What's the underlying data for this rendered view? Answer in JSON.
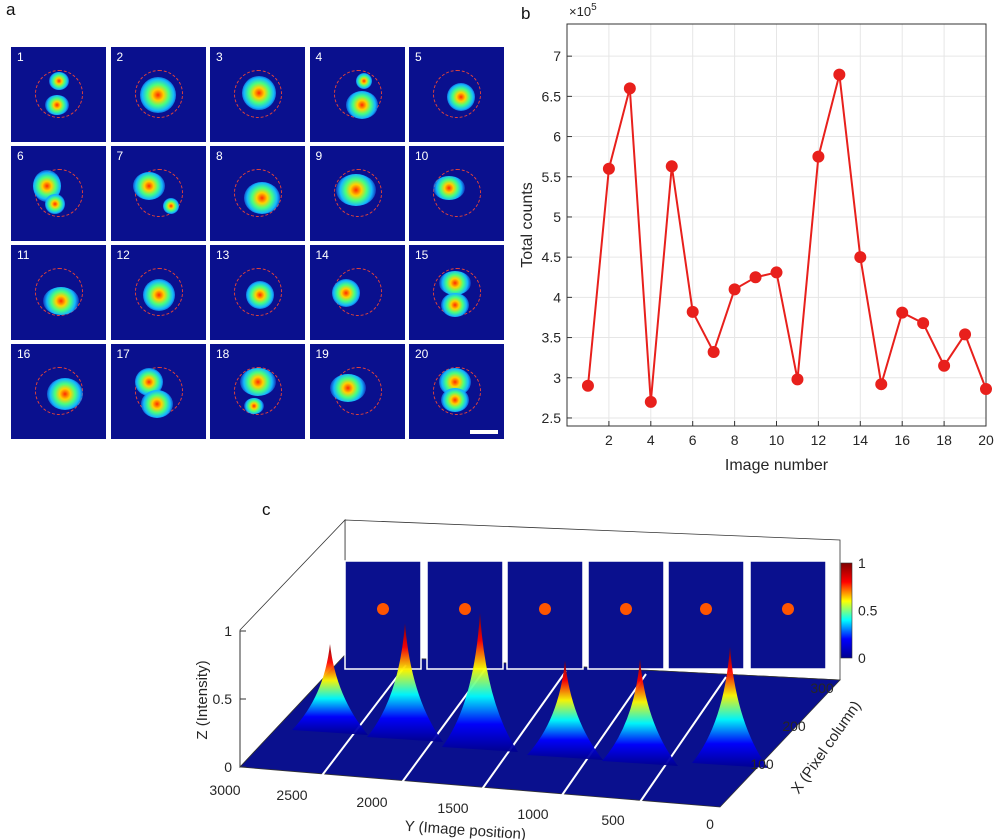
{
  "panels": {
    "a": "a",
    "b": "b",
    "c": "c"
  },
  "grid_numbers": [
    "1",
    "2",
    "3",
    "4",
    "5",
    "6",
    "7",
    "8",
    "9",
    "10",
    "11",
    "12",
    "13",
    "14",
    "15",
    "16",
    "17",
    "18",
    "19",
    "20"
  ],
  "chart_data": [
    {
      "panel": "b",
      "type": "line",
      "x": [
        1,
        2,
        3,
        4,
        5,
        6,
        7,
        8,
        9,
        10,
        11,
        12,
        13,
        14,
        15,
        16,
        17,
        18,
        19,
        20
      ],
      "values": [
        2.9,
        5.6,
        6.6,
        2.7,
        5.63,
        3.82,
        3.32,
        4.1,
        4.25,
        4.31,
        2.98,
        5.75,
        6.77,
        4.5,
        2.92,
        3.81,
        3.68,
        3.15,
        3.54,
        2.86
      ],
      "xlabel": "Image number",
      "ylabel": "Total counts",
      "multiplier": "×10",
      "multiplier_exp": "5",
      "xlim": [
        0,
        20
      ],
      "ylim": [
        2.4,
        7.4
      ],
      "xticks": [
        "2",
        "4",
        "6",
        "8",
        "10",
        "12",
        "14",
        "16",
        "18",
        "20"
      ],
      "yticks": [
        "2.5",
        "3",
        "3.5",
        "4",
        "4.5",
        "5",
        "5.5",
        "6",
        "6.5",
        "7"
      ],
      "grid": true,
      "color": "#e8201c"
    },
    {
      "panel": "c",
      "type": "surface",
      "zlabel": "Z (Intensity)",
      "ylabel": "Y (Image position)",
      "xlabel": "X (Pixel column)",
      "zticks": [
        "0",
        "0.5",
        "1"
      ],
      "yticks": [
        "3000",
        "2500",
        "2000",
        "1500",
        "1000",
        "500",
        "0"
      ],
      "xticks": [
        "100",
        "200",
        "300"
      ],
      "colorbar_ticks": [
        "0",
        "0.5",
        "1"
      ],
      "colormap": [
        "#00008f",
        "#0000ff",
        "#00ffff",
        "#ffff00",
        "#ff0000",
        "#800000"
      ],
      "peaks": [
        0.55,
        0.78,
        0.95,
        0.62,
        0.68,
        0.8
      ]
    }
  ]
}
